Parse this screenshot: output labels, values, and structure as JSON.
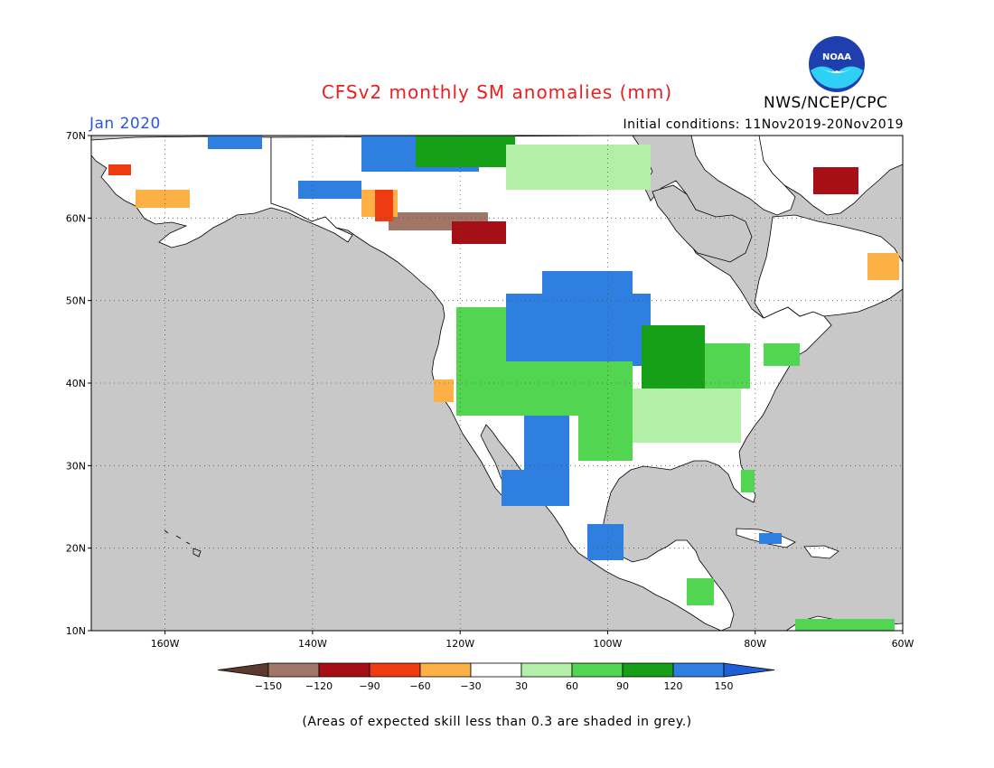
{
  "title": "CFSv2 monthly SM anomalies (mm)",
  "agency": "NWS/NCEP/CPC",
  "logo_text": "NOAA",
  "target_month": "Jan 2020",
  "initial_conditions": "Initial conditions: 11Nov2019-20Nov2019",
  "footnote": "(Areas of expected skill less than 0.3 are shaded in grey.)",
  "map": {
    "lon_range": [
      -170,
      -60
    ],
    "lat_range": [
      10,
      70
    ],
    "lon_ticks": [
      {
        "value": -160,
        "label": "160W"
      },
      {
        "value": -140,
        "label": "140W"
      },
      {
        "value": -120,
        "label": "120W"
      },
      {
        "value": -100,
        "label": "100W"
      },
      {
        "value": -80,
        "label": "80W"
      },
      {
        "value": -60,
        "label": "60W"
      }
    ],
    "lat_ticks": [
      {
        "value": 70,
        "label": "70N"
      },
      {
        "value": 60,
        "label": "60N"
      },
      {
        "value": 50,
        "label": "50N"
      },
      {
        "value": 40,
        "label": "40N"
      },
      {
        "value": 30,
        "label": "30N"
      },
      {
        "value": 20,
        "label": "20N"
      },
      {
        "value": 10,
        "label": "10N"
      }
    ],
    "grid_lons": [
      -160,
      -140,
      -120,
      -100,
      -80
    ],
    "grid_lats": [
      60,
      50,
      40,
      30,
      20
    ],
    "low_skill_color": "#c8c8c8",
    "land_color": "#ffffff"
  },
  "colorbar": {
    "labels": [
      "-150",
      "-120",
      "-90",
      "-60",
      "-30",
      "30",
      "60",
      "90",
      "120",
      "150"
    ],
    "colors": [
      "#5a3a2c",
      "#a07766",
      "#a50f15",
      "#ef3b12",
      "#fcb045",
      "#ffffff",
      "#b2f0a8",
      "#52d652",
      "#15a018",
      "#2e7fe0",
      "#1c5fd6"
    ]
  }
}
